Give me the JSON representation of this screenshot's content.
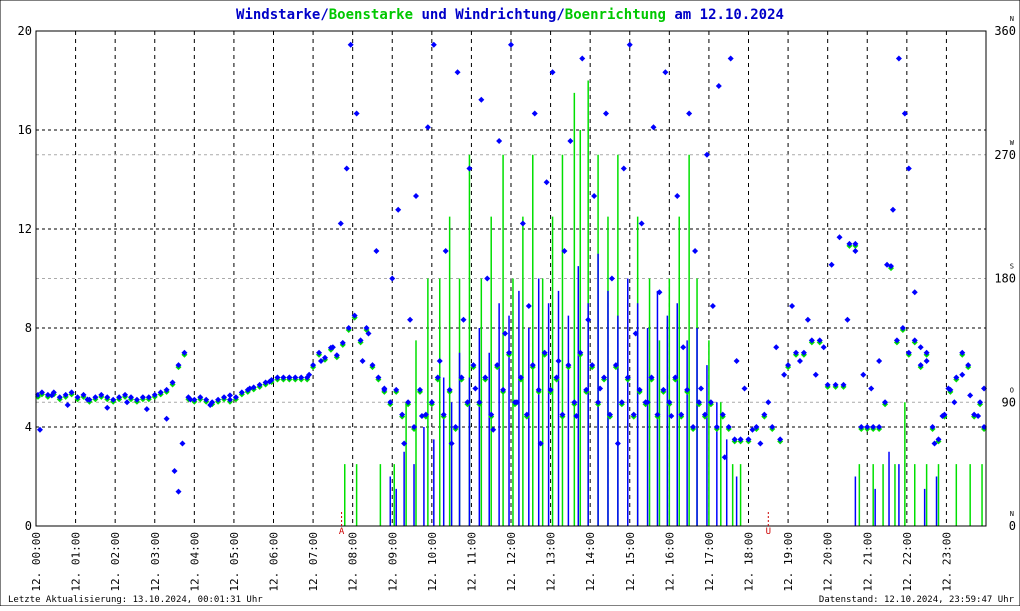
{
  "chart_data": {
    "type": "scatter",
    "title_parts": [
      {
        "text": "Windstarke",
        "color": "#0000c8"
      },
      {
        "text": "/",
        "color": "#0000c8"
      },
      {
        "text": "Boenstarke",
        "color": "#00c800"
      },
      {
        "text": " und ",
        "color": "#0000c8"
      },
      {
        "text": "Windrichtung",
        "color": "#0000c8"
      },
      {
        "text": "/",
        "color": "#0000c8"
      },
      {
        "text": "Boenrichtung",
        "color": "#00c800"
      },
      {
        "text": " am 12.10.2024",
        "color": "#0000c8"
      }
    ],
    "colors": {
      "wind": "#0000ff",
      "gust": "#00e000",
      "frame": "#000000",
      "sun": "#cc0000"
    },
    "grid": true,
    "xlim": [
      0,
      24
    ],
    "ylim_left": [
      0,
      20
    ],
    "ylim_right": [
      0,
      360
    ],
    "left_ticks": [
      "0",
      "4",
      "8",
      "12",
      "16",
      "20"
    ],
    "right_ticks": [
      "0",
      "90",
      "180",
      "270",
      "360"
    ],
    "compass_labels": [
      "N",
      "O",
      "S",
      "W",
      "N"
    ],
    "x_tick_labels": [
      "12. 00:00",
      "12. 01:00",
      "12. 02:00",
      "12. 03:00",
      "12. 04:00",
      "12. 05:00",
      "12. 06:00",
      "12. 07:00",
      "12. 08:00",
      "12. 09:00",
      "12. 10:00",
      "12. 11:00",
      "12. 12:00",
      "12. 13:00",
      "12. 14:00",
      "12. 15:00",
      "12. 16:00",
      "12. 17:00",
      "12. 18:00",
      "12. 19:00",
      "12. 20:00",
      "12. 21:00",
      "12. 22:00",
      "12. 23:00"
    ],
    "sun_markers": [
      {
        "label": "A",
        "hour": 7.72
      },
      {
        "label": "U",
        "hour": 18.5
      }
    ],
    "wind_speed_bars": [
      [
        8.95,
        2.0
      ],
      [
        9.1,
        1.5
      ],
      [
        9.3,
        3.0
      ],
      [
        9.55,
        2.5
      ],
      [
        9.8,
        4.0
      ],
      [
        10.05,
        3.5
      ],
      [
        10.3,
        6.0
      ],
      [
        10.5,
        5.0
      ],
      [
        10.7,
        7.0
      ],
      [
        10.95,
        6.0
      ],
      [
        11.2,
        8.0
      ],
      [
        11.45,
        7.0
      ],
      [
        11.7,
        9.0
      ],
      [
        11.95,
        8.5
      ],
      [
        12.2,
        9.5
      ],
      [
        12.45,
        8.0
      ],
      [
        12.7,
        10.0
      ],
      [
        12.95,
        9.0
      ],
      [
        13.2,
        9.5
      ],
      [
        13.45,
        8.5
      ],
      [
        13.7,
        10.5
      ],
      [
        13.95,
        9.0
      ],
      [
        14.2,
        11.0
      ],
      [
        14.45,
        9.5
      ],
      [
        14.7,
        8.5
      ],
      [
        14.95,
        10.0
      ],
      [
        15.2,
        9.0
      ],
      [
        15.45,
        8.0
      ],
      [
        15.7,
        9.5
      ],
      [
        15.95,
        8.5
      ],
      [
        16.2,
        9.0
      ],
      [
        16.45,
        7.5
      ],
      [
        16.7,
        8.0
      ],
      [
        16.95,
        6.5
      ],
      [
        17.2,
        5.0
      ],
      [
        17.45,
        3.5
      ],
      [
        17.7,
        2.0
      ],
      [
        20.7,
        2.0
      ],
      [
        21.2,
        1.5
      ],
      [
        21.55,
        3.0
      ],
      [
        21.8,
        2.5
      ],
      [
        22.45,
        1.5
      ],
      [
        22.75,
        2.0
      ]
    ],
    "gust_bars": [
      [
        7.8,
        2.5
      ],
      [
        8.1,
        2.5
      ],
      [
        8.7,
        2.5
      ],
      [
        9.05,
        2.5
      ],
      [
        9.35,
        5.0
      ],
      [
        9.6,
        7.5
      ],
      [
        9.9,
        10.0
      ],
      [
        10.2,
        10.0
      ],
      [
        10.45,
        12.5
      ],
      [
        10.7,
        10.0
      ],
      [
        10.95,
        15.0
      ],
      [
        11.25,
        10.0
      ],
      [
        11.5,
        12.5
      ],
      [
        11.8,
        15.0
      ],
      [
        12.05,
        10.0
      ],
      [
        12.3,
        12.5
      ],
      [
        12.55,
        15.0
      ],
      [
        12.8,
        10.0
      ],
      [
        13.05,
        12.5
      ],
      [
        13.3,
        15.0
      ],
      [
        13.6,
        17.5
      ],
      [
        13.75,
        16.0
      ],
      [
        13.95,
        18.0
      ],
      [
        14.2,
        15.0
      ],
      [
        14.45,
        12.5
      ],
      [
        14.7,
        15.0
      ],
      [
        14.95,
        10.0
      ],
      [
        15.2,
        12.5
      ],
      [
        15.5,
        10.0
      ],
      [
        15.75,
        7.5
      ],
      [
        16.0,
        10.0
      ],
      [
        16.25,
        12.5
      ],
      [
        16.5,
        15.0
      ],
      [
        16.7,
        10.0
      ],
      [
        17.0,
        7.5
      ],
      [
        17.3,
        5.0
      ],
      [
        17.6,
        2.5
      ],
      [
        17.8,
        2.5
      ],
      [
        20.8,
        2.5
      ],
      [
        21.15,
        2.5
      ],
      [
        21.4,
        2.5
      ],
      [
        21.7,
        2.5
      ],
      [
        21.95,
        5.0
      ],
      [
        22.2,
        2.5
      ],
      [
        22.5,
        2.5
      ],
      [
        22.8,
        2.5
      ],
      [
        23.25,
        2.5
      ],
      [
        23.6,
        2.5
      ],
      [
        23.9,
        2.5
      ]
    ],
    "wind_speed_points": [
      [
        0.05,
        5.3
      ],
      [
        0.15,
        5.4
      ],
      [
        0.3,
        5.3
      ],
      [
        0.45,
        5.4
      ],
      [
        0.6,
        5.2
      ],
      [
        0.75,
        5.3
      ],
      [
        0.9,
        5.4
      ],
      [
        1.05,
        5.2
      ],
      [
        1.2,
        5.3
      ],
      [
        1.35,
        5.1
      ],
      [
        1.5,
        5.2
      ],
      [
        1.65,
        5.3
      ],
      [
        1.8,
        5.2
      ],
      [
        1.95,
        5.1
      ],
      [
        2.1,
        5.2
      ],
      [
        2.25,
        5.3
      ],
      [
        2.4,
        5.2
      ],
      [
        2.55,
        5.1
      ],
      [
        2.7,
        5.2
      ],
      [
        2.85,
        5.2
      ],
      [
        3.0,
        5.3
      ],
      [
        3.15,
        5.4
      ],
      [
        3.3,
        5.5
      ],
      [
        3.45,
        5.8
      ],
      [
        3.6,
        6.5
      ],
      [
        3.75,
        7.0
      ],
      [
        3.85,
        5.2
      ],
      [
        4.0,
        5.1
      ],
      [
        4.15,
        5.2
      ],
      [
        4.3,
        5.1
      ],
      [
        4.45,
        5.0
      ],
      [
        4.6,
        5.1
      ],
      [
        4.75,
        5.2
      ],
      [
        4.9,
        5.1
      ],
      [
        5.05,
        5.2
      ],
      [
        5.2,
        5.4
      ],
      [
        5.35,
        5.5
      ],
      [
        5.5,
        5.6
      ],
      [
        5.65,
        5.7
      ],
      [
        5.8,
        5.8
      ],
      [
        5.95,
        5.9
      ],
      [
        6.1,
        6.0
      ],
      [
        6.25,
        6.0
      ],
      [
        6.4,
        6.0
      ],
      [
        6.55,
        6.0
      ],
      [
        6.7,
        6.0
      ],
      [
        6.85,
        6.0
      ],
      [
        7.0,
        6.5
      ],
      [
        7.15,
        7.0
      ],
      [
        7.3,
        6.8
      ],
      [
        7.45,
        7.2
      ],
      [
        7.6,
        6.9
      ],
      [
        7.75,
        7.4
      ],
      [
        7.9,
        8.0
      ],
      [
        8.05,
        8.5
      ],
      [
        8.2,
        7.5
      ],
      [
        8.35,
        8.0
      ],
      [
        8.5,
        6.5
      ],
      [
        8.65,
        6.0
      ],
      [
        8.8,
        5.5
      ],
      [
        8.95,
        5.0
      ],
      [
        9.1,
        5.5
      ],
      [
        9.25,
        4.5
      ],
      [
        9.4,
        5.0
      ],
      [
        9.55,
        4.0
      ],
      [
        9.7,
        5.5
      ],
      [
        9.85,
        4.5
      ],
      [
        10.0,
        5.0
      ],
      [
        10.15,
        6.0
      ],
      [
        10.3,
        4.5
      ],
      [
        10.45,
        5.5
      ],
      [
        10.6,
        4.0
      ],
      [
        10.75,
        6.0
      ],
      [
        10.9,
        5.0
      ],
      [
        11.05,
        6.5
      ],
      [
        11.2,
        5.0
      ],
      [
        11.35,
        6.0
      ],
      [
        11.5,
        4.5
      ],
      [
        11.65,
        6.5
      ],
      [
        11.8,
        5.5
      ],
      [
        11.95,
        7.0
      ],
      [
        12.1,
        5.0
      ],
      [
        12.25,
        6.0
      ],
      [
        12.4,
        4.5
      ],
      [
        12.55,
        6.5
      ],
      [
        12.7,
        5.5
      ],
      [
        12.85,
        7.0
      ],
      [
        13.0,
        5.5
      ],
      [
        13.15,
        6.0
      ],
      [
        13.3,
        4.5
      ],
      [
        13.45,
        6.5
      ],
      [
        13.6,
        5.0
      ],
      [
        13.75,
        7.0
      ],
      [
        13.9,
        5.5
      ],
      [
        14.05,
        6.5
      ],
      [
        14.2,
        5.0
      ],
      [
        14.35,
        6.0
      ],
      [
        14.5,
        4.5
      ],
      [
        14.65,
        6.5
      ],
      [
        14.8,
        5.0
      ],
      [
        14.95,
        6.0
      ],
      [
        15.1,
        4.5
      ],
      [
        15.25,
        5.5
      ],
      [
        15.4,
        5.0
      ],
      [
        15.55,
        6.0
      ],
      [
        15.7,
        4.5
      ],
      [
        15.85,
        5.5
      ],
      [
        16.0,
        5.0
      ],
      [
        16.15,
        6.0
      ],
      [
        16.3,
        4.5
      ],
      [
        16.45,
        5.5
      ],
      [
        16.6,
        4.0
      ],
      [
        16.75,
        5.0
      ],
      [
        16.9,
        4.5
      ],
      [
        17.05,
        5.0
      ],
      [
        17.2,
        4.0
      ],
      [
        17.35,
        4.5
      ],
      [
        17.5,
        4.0
      ],
      [
        17.65,
        3.5
      ],
      [
        17.8,
        3.5
      ],
      [
        18.0,
        3.5
      ],
      [
        18.2,
        4.0
      ],
      [
        18.4,
        4.5
      ],
      [
        18.6,
        4.0
      ],
      [
        18.8,
        3.5
      ],
      [
        19.0,
        6.5
      ],
      [
        19.2,
        7.0
      ],
      [
        19.4,
        7.0
      ],
      [
        19.6,
        7.5
      ],
      [
        19.8,
        7.5
      ],
      [
        20.0,
        5.7
      ],
      [
        20.2,
        5.7
      ],
      [
        20.4,
        5.7
      ],
      [
        20.55,
        11.4
      ],
      [
        20.7,
        11.4
      ],
      [
        20.85,
        4.0
      ],
      [
        21.0,
        4.0
      ],
      [
        21.15,
        4.0
      ],
      [
        21.3,
        4.0
      ],
      [
        21.45,
        5.0
      ],
      [
        21.6,
        10.5
      ],
      [
        21.75,
        7.5
      ],
      [
        21.9,
        8.0
      ],
      [
        22.05,
        7.0
      ],
      [
        22.2,
        7.5
      ],
      [
        22.35,
        6.5
      ],
      [
        22.5,
        7.0
      ],
      [
        22.65,
        4.0
      ],
      [
        22.8,
        3.5
      ],
      [
        22.95,
        4.5
      ],
      [
        23.1,
        5.5
      ],
      [
        23.25,
        6.0
      ],
      [
        23.4,
        7.0
      ],
      [
        23.55,
        6.5
      ],
      [
        23.7,
        4.5
      ],
      [
        23.85,
        5.0
      ],
      [
        23.95,
        4.0
      ]
    ],
    "wind_dir_points": [
      [
        0.1,
        70
      ],
      [
        0.4,
        95
      ],
      [
        0.8,
        88
      ],
      [
        1.3,
        92
      ],
      [
        1.8,
        86
      ],
      [
        2.3,
        90
      ],
      [
        2.8,
        85
      ],
      [
        3.3,
        78
      ],
      [
        3.5,
        40
      ],
      [
        3.6,
        25
      ],
      [
        3.7,
        60
      ],
      [
        3.9,
        92
      ],
      [
        4.4,
        88
      ],
      [
        4.9,
        95
      ],
      [
        5.4,
        100
      ],
      [
        5.9,
        105
      ],
      [
        6.4,
        108
      ],
      [
        6.9,
        110
      ],
      [
        7.2,
        120
      ],
      [
        7.5,
        130
      ],
      [
        7.7,
        220
      ],
      [
        7.85,
        260
      ],
      [
        7.95,
        350
      ],
      [
        8.1,
        300
      ],
      [
        8.25,
        120
      ],
      [
        8.4,
        140
      ],
      [
        8.6,
        200
      ],
      [
        8.8,
        100
      ],
      [
        9.0,
        180
      ],
      [
        9.15,
        230
      ],
      [
        9.3,
        60
      ],
      [
        9.45,
        150
      ],
      [
        9.6,
        240
      ],
      [
        9.75,
        80
      ],
      [
        9.9,
        290
      ],
      [
        10.05,
        350
      ],
      [
        10.2,
        120
      ],
      [
        10.35,
        200
      ],
      [
        10.5,
        60
      ],
      [
        10.65,
        330
      ],
      [
        10.8,
        150
      ],
      [
        10.95,
        260
      ],
      [
        11.1,
        100
      ],
      [
        11.25,
        310
      ],
      [
        11.4,
        180
      ],
      [
        11.55,
        70
      ],
      [
        11.7,
        280
      ],
      [
        11.85,
        140
      ],
      [
        12.0,
        350
      ],
      [
        12.15,
        90
      ],
      [
        12.3,
        220
      ],
      [
        12.45,
        160
      ],
      [
        12.6,
        300
      ],
      [
        12.75,
        60
      ],
      [
        12.9,
        250
      ],
      [
        13.05,
        330
      ],
      [
        13.2,
        120
      ],
      [
        13.35,
        200
      ],
      [
        13.5,
        280
      ],
      [
        13.65,
        80
      ],
      [
        13.8,
        340
      ],
      [
        13.95,
        150
      ],
      [
        14.1,
        240
      ],
      [
        14.25,
        100
      ],
      [
        14.4,
        300
      ],
      [
        14.55,
        180
      ],
      [
        14.7,
        60
      ],
      [
        14.85,
        260
      ],
      [
        15.0,
        350
      ],
      [
        15.15,
        140
      ],
      [
        15.3,
        220
      ],
      [
        15.45,
        90
      ],
      [
        15.6,
        290
      ],
      [
        15.75,
        170
      ],
      [
        15.9,
        330
      ],
      [
        16.05,
        80
      ],
      [
        16.2,
        240
      ],
      [
        16.35,
        130
      ],
      [
        16.5,
        300
      ],
      [
        16.65,
        200
      ],
      [
        16.8,
        100
      ],
      [
        16.95,
        270
      ],
      [
        17.1,
        160
      ],
      [
        17.25,
        320
      ],
      [
        17.4,
        50
      ],
      [
        17.55,
        340
      ],
      [
        17.7,
        120
      ],
      [
        17.9,
        100
      ],
      [
        18.1,
        70
      ],
      [
        18.3,
        60
      ],
      [
        18.5,
        90
      ],
      [
        18.7,
        130
      ],
      [
        18.9,
        110
      ],
      [
        19.1,
        160
      ],
      [
        19.3,
        120
      ],
      [
        19.5,
        150
      ],
      [
        19.7,
        110
      ],
      [
        19.9,
        130
      ],
      [
        20.1,
        190
      ],
      [
        20.3,
        210
      ],
      [
        20.5,
        150
      ],
      [
        20.7,
        200
      ],
      [
        20.9,
        110
      ],
      [
        21.1,
        100
      ],
      [
        21.3,
        120
      ],
      [
        21.5,
        190
      ],
      [
        21.65,
        230
      ],
      [
        21.8,
        340
      ],
      [
        21.95,
        300
      ],
      [
        22.05,
        260
      ],
      [
        22.2,
        170
      ],
      [
        22.35,
        130
      ],
      [
        22.5,
        120
      ],
      [
        22.7,
        60
      ],
      [
        22.9,
        80
      ],
      [
        23.05,
        100
      ],
      [
        23.2,
        90
      ],
      [
        23.4,
        110
      ],
      [
        23.6,
        95
      ],
      [
        23.8,
        80
      ],
      [
        23.95,
        100
      ]
    ],
    "footer_left": "Letzte Aktualisierung: 13.10.2024, 00:01:31 Uhr",
    "footer_right": "Datenstand: 12.10.2024, 23:59:47 Uhr"
  }
}
